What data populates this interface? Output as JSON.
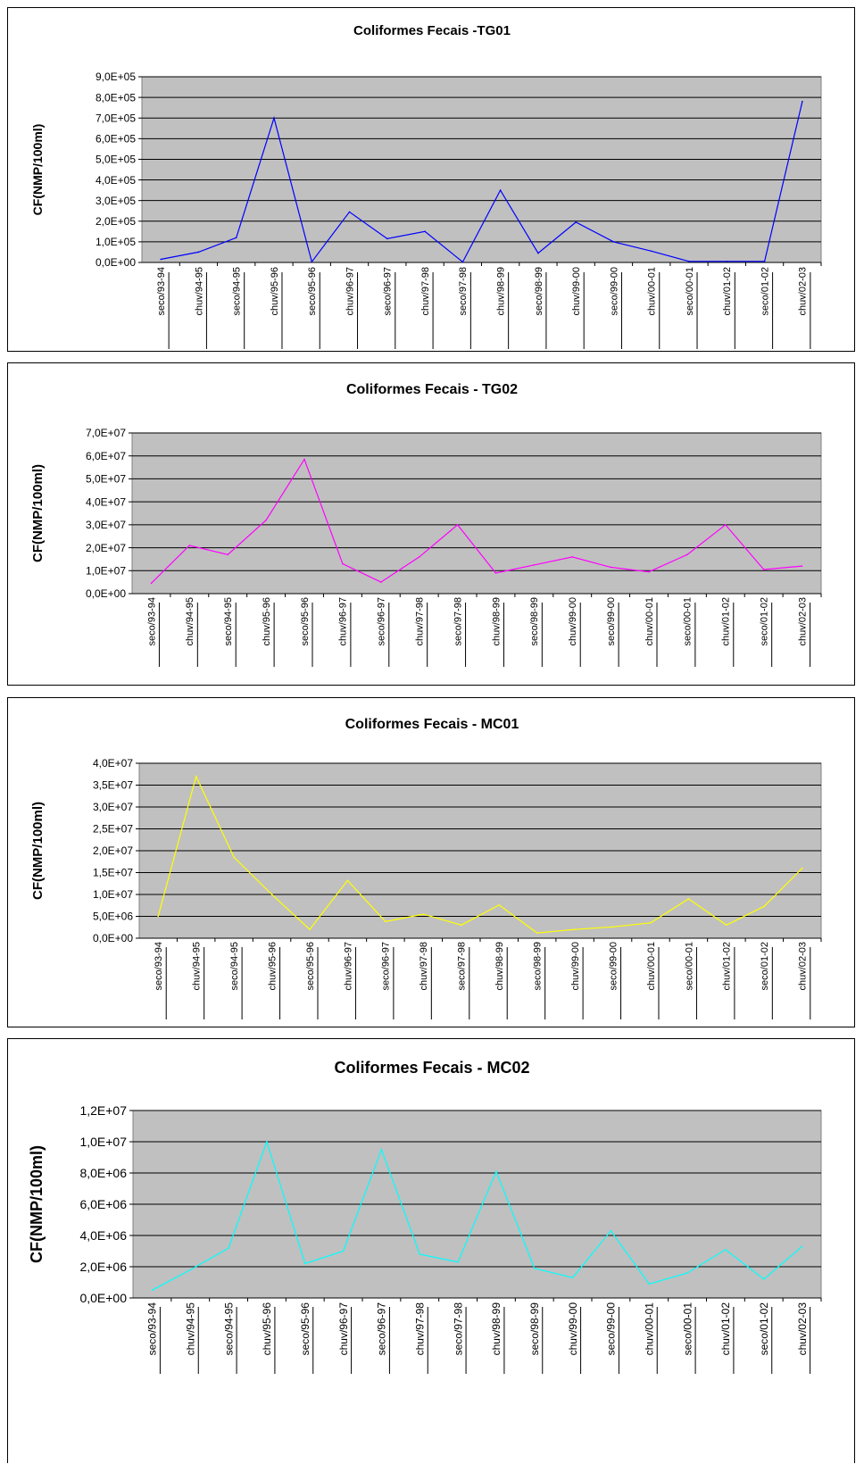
{
  "chart_data": [
    {
      "type": "line",
      "title": "Coliformes Fecais -TG01",
      "ylabel": "CF(NMP/100ml)",
      "xlabel": "",
      "ylim": [
        0,
        900000
      ],
      "y_ticks": [
        "0,0E+00",
        "1,0E+05",
        "2,0E+05",
        "3,0E+05",
        "4,0E+05",
        "5,0E+05",
        "6,0E+05",
        "7,0E+05",
        "8,0E+05",
        "9,0E+05"
      ],
      "categories": [
        "seco/93-94",
        "chuv/94-95",
        "seco/94-95",
        "chuv/95-96",
        "seco/95-96",
        "chuv/96-97",
        "seco/96-97",
        "chuv/97-98",
        "seco/97-98",
        "chuv/98-99",
        "seco/98-99",
        "chuv/99-00",
        "seco/99-00",
        "chuv/00-01",
        "seco/00-01",
        "chuv/01-02",
        "seco/01-02",
        "chuv/02-03"
      ],
      "series": [
        {
          "values": [
            15000,
            50000,
            120000,
            700000,
            3000,
            245000,
            115000,
            150000,
            2000,
            350000,
            45000,
            195000,
            100000,
            55000,
            5000,
            5000,
            5000,
            780000
          ]
        }
      ],
      "color": "#0000ff",
      "grid": true,
      "background": "#c0c0c0"
    },
    {
      "type": "line",
      "title": "Coliformes Fecais - TG02",
      "ylabel": "CF(NMP/100ml)",
      "xlabel": "",
      "ylim": [
        0,
        70000000
      ],
      "y_ticks": [
        "0,0E+00",
        "1,0E+07",
        "2,0E+07",
        "3,0E+07",
        "4,0E+07",
        "5,0E+07",
        "6,0E+07",
        "7,0E+07"
      ],
      "categories": [
        "seco/93-94",
        "chuv/94-95",
        "seco/94-95",
        "chuv/95-96",
        "seco/95-96",
        "chuv/96-97",
        "seco/96-97",
        "chuv/97-98",
        "seco/97-98",
        "chuv/98-99",
        "seco/98-99",
        "chuv/99-00",
        "seco/99-00",
        "chuv/00-01",
        "seco/00-01",
        "chuv/01-02",
        "seco/01-02",
        "chuv/02-03"
      ],
      "series": [
        {
          "values": [
            4500000,
            21000000,
            17000000,
            32000000,
            58500000,
            13000000,
            5000000,
            16000000,
            30000000,
            9000000,
            12500000,
            16000000,
            11500000,
            9500000,
            17000000,
            30000000,
            10500000,
            12000000
          ]
        }
      ],
      "color": "#ff00ff",
      "grid": true,
      "background": "#c0c0c0"
    },
    {
      "type": "line",
      "title": "Coliformes Fecais - MC01",
      "ylabel": "CF(NMP/100ml)",
      "xlabel": "",
      "ylim": [
        0,
        40000000
      ],
      "y_ticks": [
        "0,0E+00",
        "5,0E+06",
        "1,0E+07",
        "1,5E+07",
        "2,0E+07",
        "2,5E+07",
        "3,0E+07",
        "3,5E+07",
        "4,0E+07"
      ],
      "categories": [
        "seco/93-94",
        "chuv/94-95",
        "seco/94-95",
        "chuv/95-96",
        "seco/95-96",
        "chuv/96-97",
        "seco/96-97",
        "chuv/97-98",
        "seco/97-98",
        "chuv/98-99",
        "seco/98-99",
        "chuv/99-00",
        "seco/99-00",
        "chuv/00-01",
        "seco/00-01",
        "chuv/01-02",
        "seco/01-02",
        "chuv/02-03"
      ],
      "series": [
        {
          "values": [
            5000000,
            37000000,
            18500000,
            10000000,
            2000000,
            13200000,
            3800000,
            5500000,
            3000000,
            7600000,
            1200000,
            2000000,
            2600000,
            3500000,
            9000000,
            3000000,
            7300000,
            16000000
          ]
        }
      ],
      "color": "#ffff00",
      "grid": true,
      "background": "#c0c0c0"
    },
    {
      "type": "line",
      "title": "Coliformes Fecais - MC02",
      "ylabel": "CF(NMP/100ml)",
      "xlabel": "",
      "ylim": [
        0,
        12000000
      ],
      "y_ticks": [
        "0,0E+00",
        "2,0E+06",
        "4,0E+06",
        "6,0E+06",
        "8,0E+06",
        "1,0E+07",
        "1,2E+07"
      ],
      "categories": [
        "seco/93-94",
        "chuv/94-95",
        "seco/94-95",
        "chuv/95-96",
        "seco/95-96",
        "chuv/96-97",
        "seco/96-97",
        "chuv/97-98",
        "seco/97-98",
        "chuv/98-99",
        "seco/98-99",
        "chuv/99-00",
        "seco/99-00",
        "chuv/00-01",
        "seco/00-01",
        "chuv/01-02",
        "seco/01-02",
        "chuv/02-03"
      ],
      "series": [
        {
          "values": [
            500000,
            1800000,
            3200000,
            10000000,
            2200000,
            3000000,
            9500000,
            2800000,
            2300000,
            8100000,
            1900000,
            1300000,
            4300000,
            900000,
            1600000,
            3100000,
            1200000,
            3300000
          ]
        }
      ],
      "color": "#00ffff",
      "grid": true,
      "background": "#c0c0c0"
    }
  ]
}
